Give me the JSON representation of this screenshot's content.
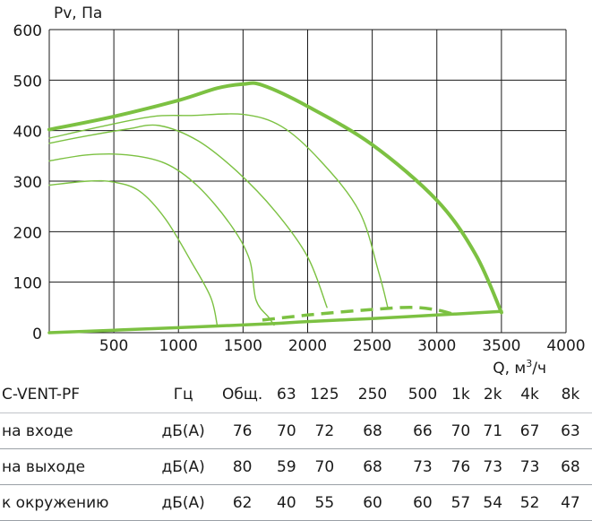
{
  "chart_data": {
    "type": "line",
    "ylabel": "Pv, Па",
    "xlabel": "Q, м",
    "xlabel_sup": "3",
    "xlabel_tail": "/ч",
    "xlim": [
      0,
      4000
    ],
    "ylim": [
      0,
      600
    ],
    "x_ticks": [
      "500",
      "1000",
      "1500",
      "2000",
      "2500",
      "3000",
      "3500",
      "4000"
    ],
    "y_ticks": [
      "0",
      "100",
      "200",
      "300",
      "400",
      "500",
      "600"
    ],
    "grid": true,
    "colors": {
      "curve": "#7cc142",
      "grid": "#1a1a1a"
    },
    "series": [
      {
        "kind": "max",
        "points": [
          [
            0,
            402
          ],
          [
            500,
            428
          ],
          [
            1000,
            460
          ],
          [
            1300,
            484
          ],
          [
            1500,
            492
          ],
          [
            1650,
            490
          ],
          [
            2000,
            448
          ],
          [
            2500,
            372
          ],
          [
            3000,
            262
          ],
          [
            3300,
            155
          ],
          [
            3500,
            40
          ]
        ]
      },
      {
        "kind": "speed",
        "points": [
          [
            0,
            385
          ],
          [
            400,
            408
          ],
          [
            800,
            428
          ],
          [
            1100,
            430
          ],
          [
            1500,
            432
          ],
          [
            1800,
            408
          ],
          [
            2100,
            340
          ],
          [
            2400,
            240
          ],
          [
            2550,
            120
          ],
          [
            2620,
            50
          ]
        ]
      },
      {
        "kind": "speed",
        "points": [
          [
            0,
            375
          ],
          [
            300,
            390
          ],
          [
            600,
            403
          ],
          [
            850,
            410
          ],
          [
            1150,
            380
          ],
          [
            1450,
            320
          ],
          [
            1750,
            240
          ],
          [
            2000,
            150
          ],
          [
            2150,
            50
          ]
        ]
      },
      {
        "kind": "speed",
        "points": [
          [
            0,
            340
          ],
          [
            300,
            352
          ],
          [
            600,
            352
          ],
          [
            900,
            335
          ],
          [
            1150,
            290
          ],
          [
            1400,
            215
          ],
          [
            1550,
            145
          ],
          [
            1600,
            65
          ],
          [
            1700,
            30
          ],
          [
            1740,
            15
          ]
        ]
      },
      {
        "kind": "speed",
        "points": [
          [
            0,
            292
          ],
          [
            300,
            300
          ],
          [
            500,
            298
          ],
          [
            700,
            280
          ],
          [
            900,
            225
          ],
          [
            1100,
            140
          ],
          [
            1250,
            70
          ],
          [
            1300,
            15
          ]
        ]
      },
      {
        "kind": "system",
        "points": [
          [
            0,
            0
          ],
          [
            1000,
            10
          ],
          [
            1650,
            17
          ],
          [
            2000,
            22
          ],
          [
            2500,
            28
          ],
          [
            3000,
            35
          ],
          [
            3500,
            42
          ]
        ]
      },
      {
        "kind": "dashed",
        "points": [
          [
            1650,
            25
          ],
          [
            2000,
            35
          ],
          [
            2500,
            46
          ],
          [
            2800,
            50
          ],
          [
            3000,
            45
          ],
          [
            3150,
            35
          ]
        ]
      }
    ]
  },
  "table": {
    "header": [
      "C-VENT-PF",
      "Гц",
      "Общ.",
      "63",
      "125",
      "250",
      "500",
      "1k",
      "2k",
      "4k",
      "8k"
    ],
    "rows": [
      {
        "label": "на входе",
        "unit": "дБ(А)",
        "values": [
          "76",
          "70",
          "72",
          "68",
          "66",
          "70",
          "71",
          "67",
          "63"
        ]
      },
      {
        "label": "на выходе",
        "unit": "дБ(А)",
        "values": [
          "80",
          "59",
          "70",
          "68",
          "73",
          "76",
          "73",
          "73",
          "68"
        ]
      },
      {
        "label": "к окружению",
        "unit": "дБ(А)",
        "values": [
          "62",
          "40",
          "55",
          "60",
          "60",
          "57",
          "54",
          "52",
          "47"
        ]
      }
    ]
  }
}
